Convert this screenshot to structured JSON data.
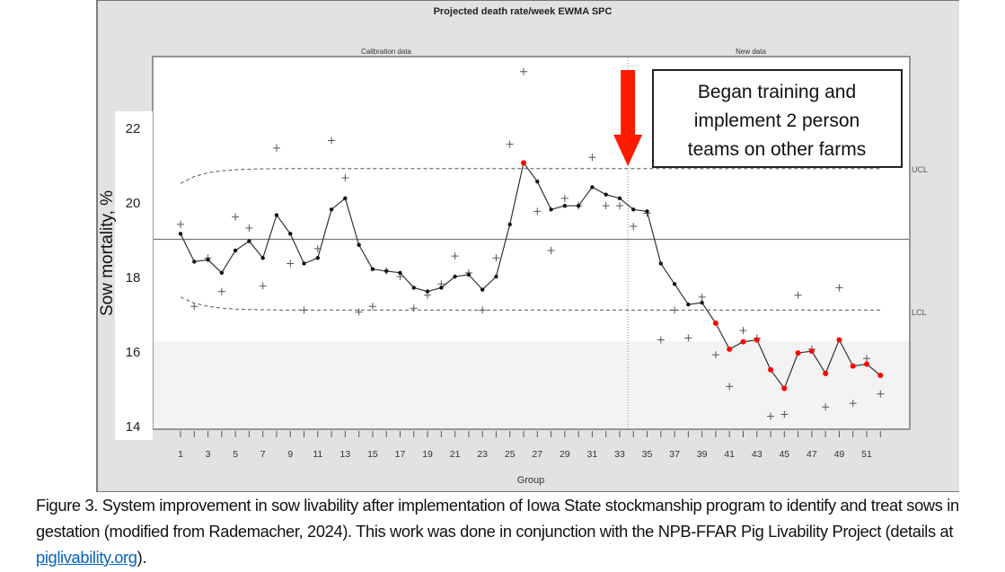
{
  "chart_data": {
    "type": "line",
    "title": "Projected death rate/week EWMA SPC",
    "xlabel": "Group",
    "ylabel": "Sow mortality, %",
    "section_labels": [
      "Calibration data",
      "New data"
    ],
    "phase_split_group": 33.6,
    "ylim": [
      14,
      23.8
    ],
    "xlim": [
      0,
      53
    ],
    "yticks": [
      14,
      16,
      18,
      20,
      22
    ],
    "xticks": [
      1,
      3,
      5,
      7,
      9,
      11,
      13,
      15,
      17,
      19,
      21,
      23,
      25,
      27,
      29,
      31,
      33,
      35,
      37,
      39,
      41,
      43,
      45,
      47,
      49,
      51
    ],
    "center_line": 19.0,
    "ucl": 20.9,
    "lcl": 17.1,
    "ucl_start": 20.5,
    "lcl_start": 17.45,
    "limit_labels": {
      "ucl": "UCL",
      "lcl": "LCL"
    },
    "grid": false,
    "x": [
      1,
      2,
      3,
      4,
      5,
      6,
      7,
      8,
      9,
      10,
      11,
      12,
      13,
      14,
      15,
      16,
      17,
      18,
      19,
      20,
      21,
      22,
      23,
      24,
      25,
      26,
      27,
      28,
      29,
      30,
      31,
      32,
      33,
      34,
      35,
      36,
      37,
      38,
      39,
      40,
      41,
      42,
      43,
      44,
      45,
      46,
      47,
      48,
      49,
      50,
      51,
      52
    ],
    "series": [
      {
        "marker": "dot-line",
        "values": [
          19.15,
          18.4,
          18.45,
          18.1,
          18.7,
          18.95,
          18.5,
          19.65,
          19.15,
          18.35,
          18.5,
          19.8,
          20.1,
          18.85,
          18.2,
          18.15,
          18.1,
          17.7,
          17.6,
          17.7,
          18.0,
          18.05,
          17.65,
          18.0,
          19.4,
          21.05,
          20.55,
          19.8,
          19.9,
          19.9,
          20.4,
          20.2,
          20.1,
          19.8,
          19.75,
          18.35,
          17.8,
          17.25,
          17.3,
          16.75,
          16.05,
          16.25,
          16.3,
          15.5,
          15.0,
          15.95,
          16.0,
          15.4,
          16.3,
          15.6,
          15.65,
          15.35
        ],
        "out_of_control": [
          26,
          40,
          41,
          42,
          43,
          44,
          45,
          46,
          47,
          48,
          49,
          50,
          51,
          52
        ]
      },
      {
        "marker": "plus",
        "values": [
          19.4,
          17.2,
          18.5,
          17.6,
          19.6,
          19.3,
          17.75,
          21.45,
          18.35,
          17.1,
          18.75,
          21.65,
          20.65,
          17.05,
          17.2,
          18.15,
          18.0,
          17.15,
          17.5,
          17.8,
          18.55,
          18.1,
          17.1,
          18.5,
          21.55,
          23.5,
          19.75,
          18.7,
          20.1,
          19.9,
          21.2,
          19.9,
          19.9,
          19.35,
          19.7,
          16.3,
          17.1,
          16.35,
          17.45,
          15.9,
          15.05,
          16.55,
          16.35,
          14.25,
          14.3,
          17.5,
          16.05,
          14.5,
          17.7,
          14.6,
          15.8,
          14.85
        ]
      }
    ],
    "annotation": {
      "lines": [
        "Began training and",
        "implement 2 person",
        "teams on other farms"
      ],
      "arrow_group": 33.6
    },
    "colors": {
      "panel": "#e4e4e4",
      "line": "#333333",
      "out_of_control": "#ff0000",
      "arrow": "#ff1a00"
    }
  },
  "caption": {
    "text": "Figure 3. System improvement in sow livability after implementation of Iowa State stockmanship program to identify and treat sows in gestation (modified from Rademacher, 2024). This work was done in conjunction with the NPB-FFAR Pig Livability Project (details at ",
    "link": "piglivability.org",
    "end": ")."
  }
}
